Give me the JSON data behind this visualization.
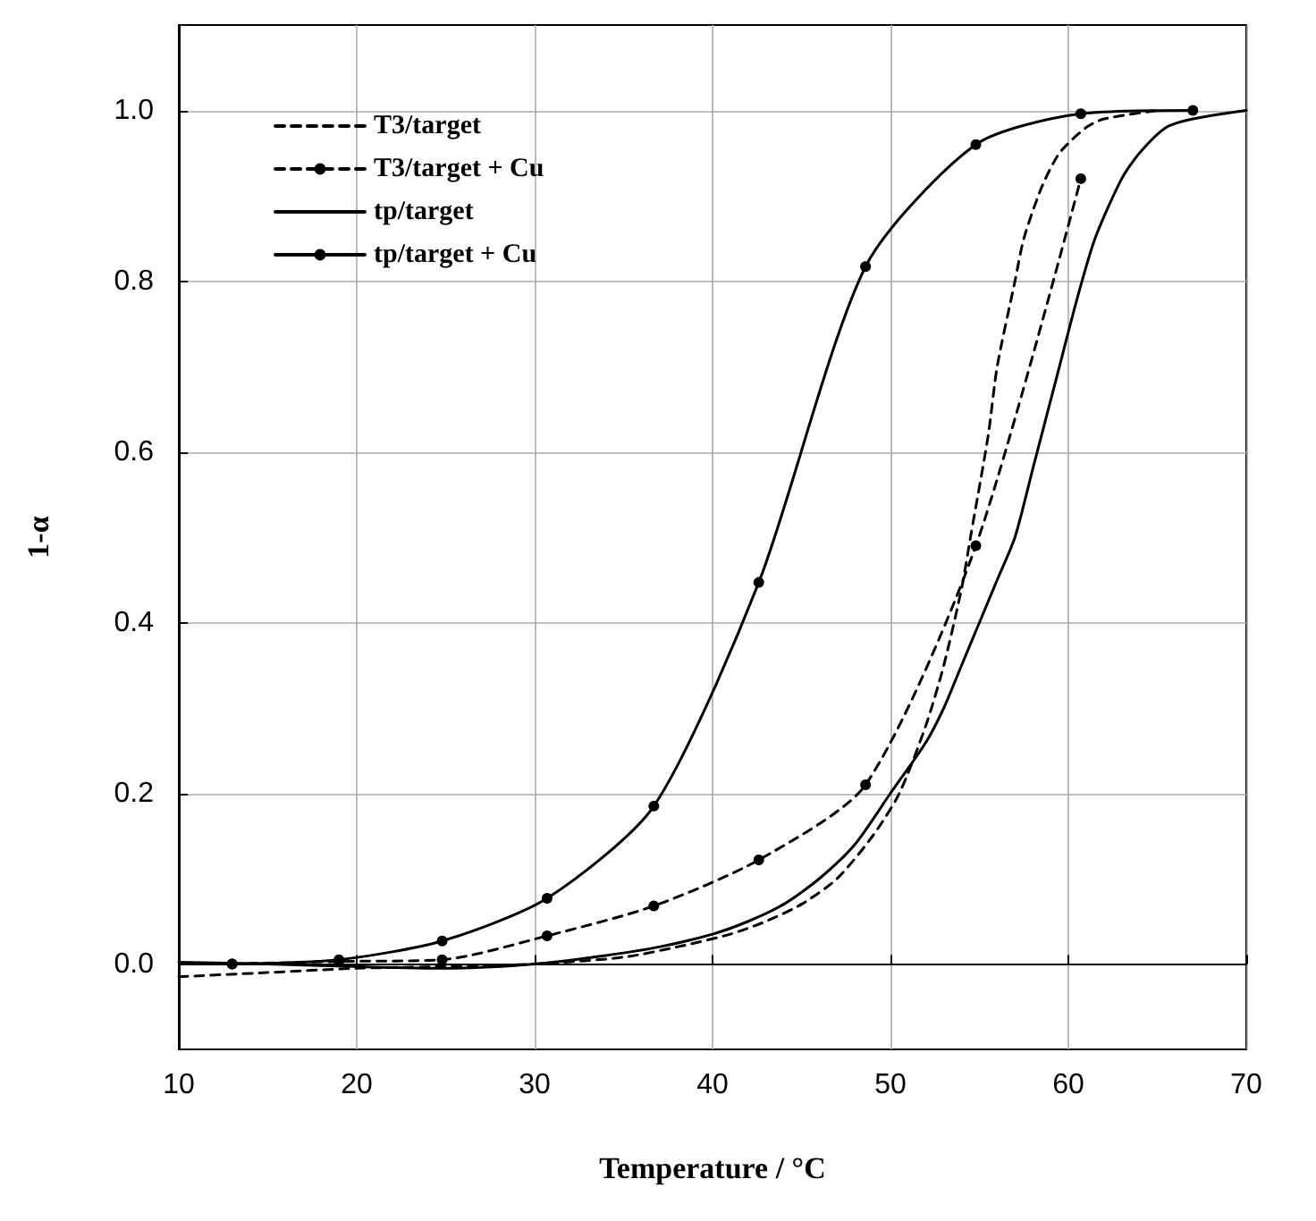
{
  "chart_data": {
    "type": "line",
    "xlabel": "Temperature / °C",
    "ylabel": "1-α",
    "xlim": [
      10,
      70
    ],
    "xticks": [
      10,
      20,
      30,
      40,
      50,
      60,
      70
    ],
    "ylim": [
      -0.1,
      1.1
    ],
    "yticks": [
      {
        "value": 0,
        "label": "0.0"
      },
      {
        "value": 0.2,
        "label": "0.2"
      },
      {
        "value": 0.4,
        "label": "0.4"
      },
      {
        "value": 0.6,
        "label": "0.6"
      },
      {
        "value": 0.8,
        "label": "0.8"
      },
      {
        "value": 1,
        "label": "1.0"
      }
    ],
    "grid": true,
    "legend": "top left",
    "series": [
      {
        "name": "T3/target",
        "color": "#000000",
        "line_style": "dashed",
        "marker": "none",
        "x": [
          10,
          15,
          20,
          25,
          30,
          35,
          38,
          41,
          43,
          45,
          47,
          49,
          50.5,
          52,
          53,
          54,
          54.5,
          55.5,
          56,
          57,
          57.5,
          58.5,
          59.5,
          61,
          62,
          65
        ],
        "values": [
          -0.015,
          -0.01,
          -0.005,
          -0.003,
          0,
          0.008,
          0.02,
          0.035,
          0.05,
          0.07,
          0.1,
          0.15,
          0.2,
          0.28,
          0.35,
          0.44,
          0.5,
          0.62,
          0.7,
          0.8,
          0.85,
          0.91,
          0.95,
          0.98,
          0.99,
          1.0
        ]
      },
      {
        "name": "T3/target + Cu",
        "color": "#000000",
        "line_style": "dashed",
        "marker": "circle",
        "x": [
          13,
          19,
          24.8,
          30.7,
          36.7,
          42.6,
          48.6,
          54.8,
          60.7
        ],
        "values": [
          0,
          0.003,
          0.005,
          0.033,
          0.068,
          0.122,
          0.21,
          0.49,
          0.92
        ]
      },
      {
        "name": "tp/target",
        "color": "#000000",
        "line_style": "solid",
        "marker": "none",
        "x": [
          10,
          15,
          20,
          25,
          30,
          34,
          37,
          40,
          42,
          44,
          46,
          48,
          50,
          52,
          53,
          54,
          55,
          56,
          57,
          58,
          59.5,
          60.5,
          61.5,
          63,
          64,
          65.5,
          67,
          70
        ],
        "values": [
          0.002,
          0,
          -0.003,
          -0.005,
          0,
          0.01,
          0.02,
          0.035,
          0.05,
          0.07,
          0.1,
          0.14,
          0.2,
          0.26,
          0.3,
          0.35,
          0.4,
          0.45,
          0.5,
          0.58,
          0.7,
          0.78,
          0.85,
          0.92,
          0.95,
          0.98,
          0.99,
          1.0
        ]
      },
      {
        "name": "tp/target + Cu",
        "color": "#000000",
        "line_style": "solid",
        "marker": "circle",
        "x": [
          13,
          19,
          24.8,
          30.7,
          36.7,
          42.6,
          48.6,
          54.8,
          60.7,
          67
        ],
        "values": [
          0,
          0.005,
          0.027,
          0.077,
          0.185,
          0.447,
          0.817,
          0.96,
          0.996,
          1.0
        ]
      }
    ]
  }
}
